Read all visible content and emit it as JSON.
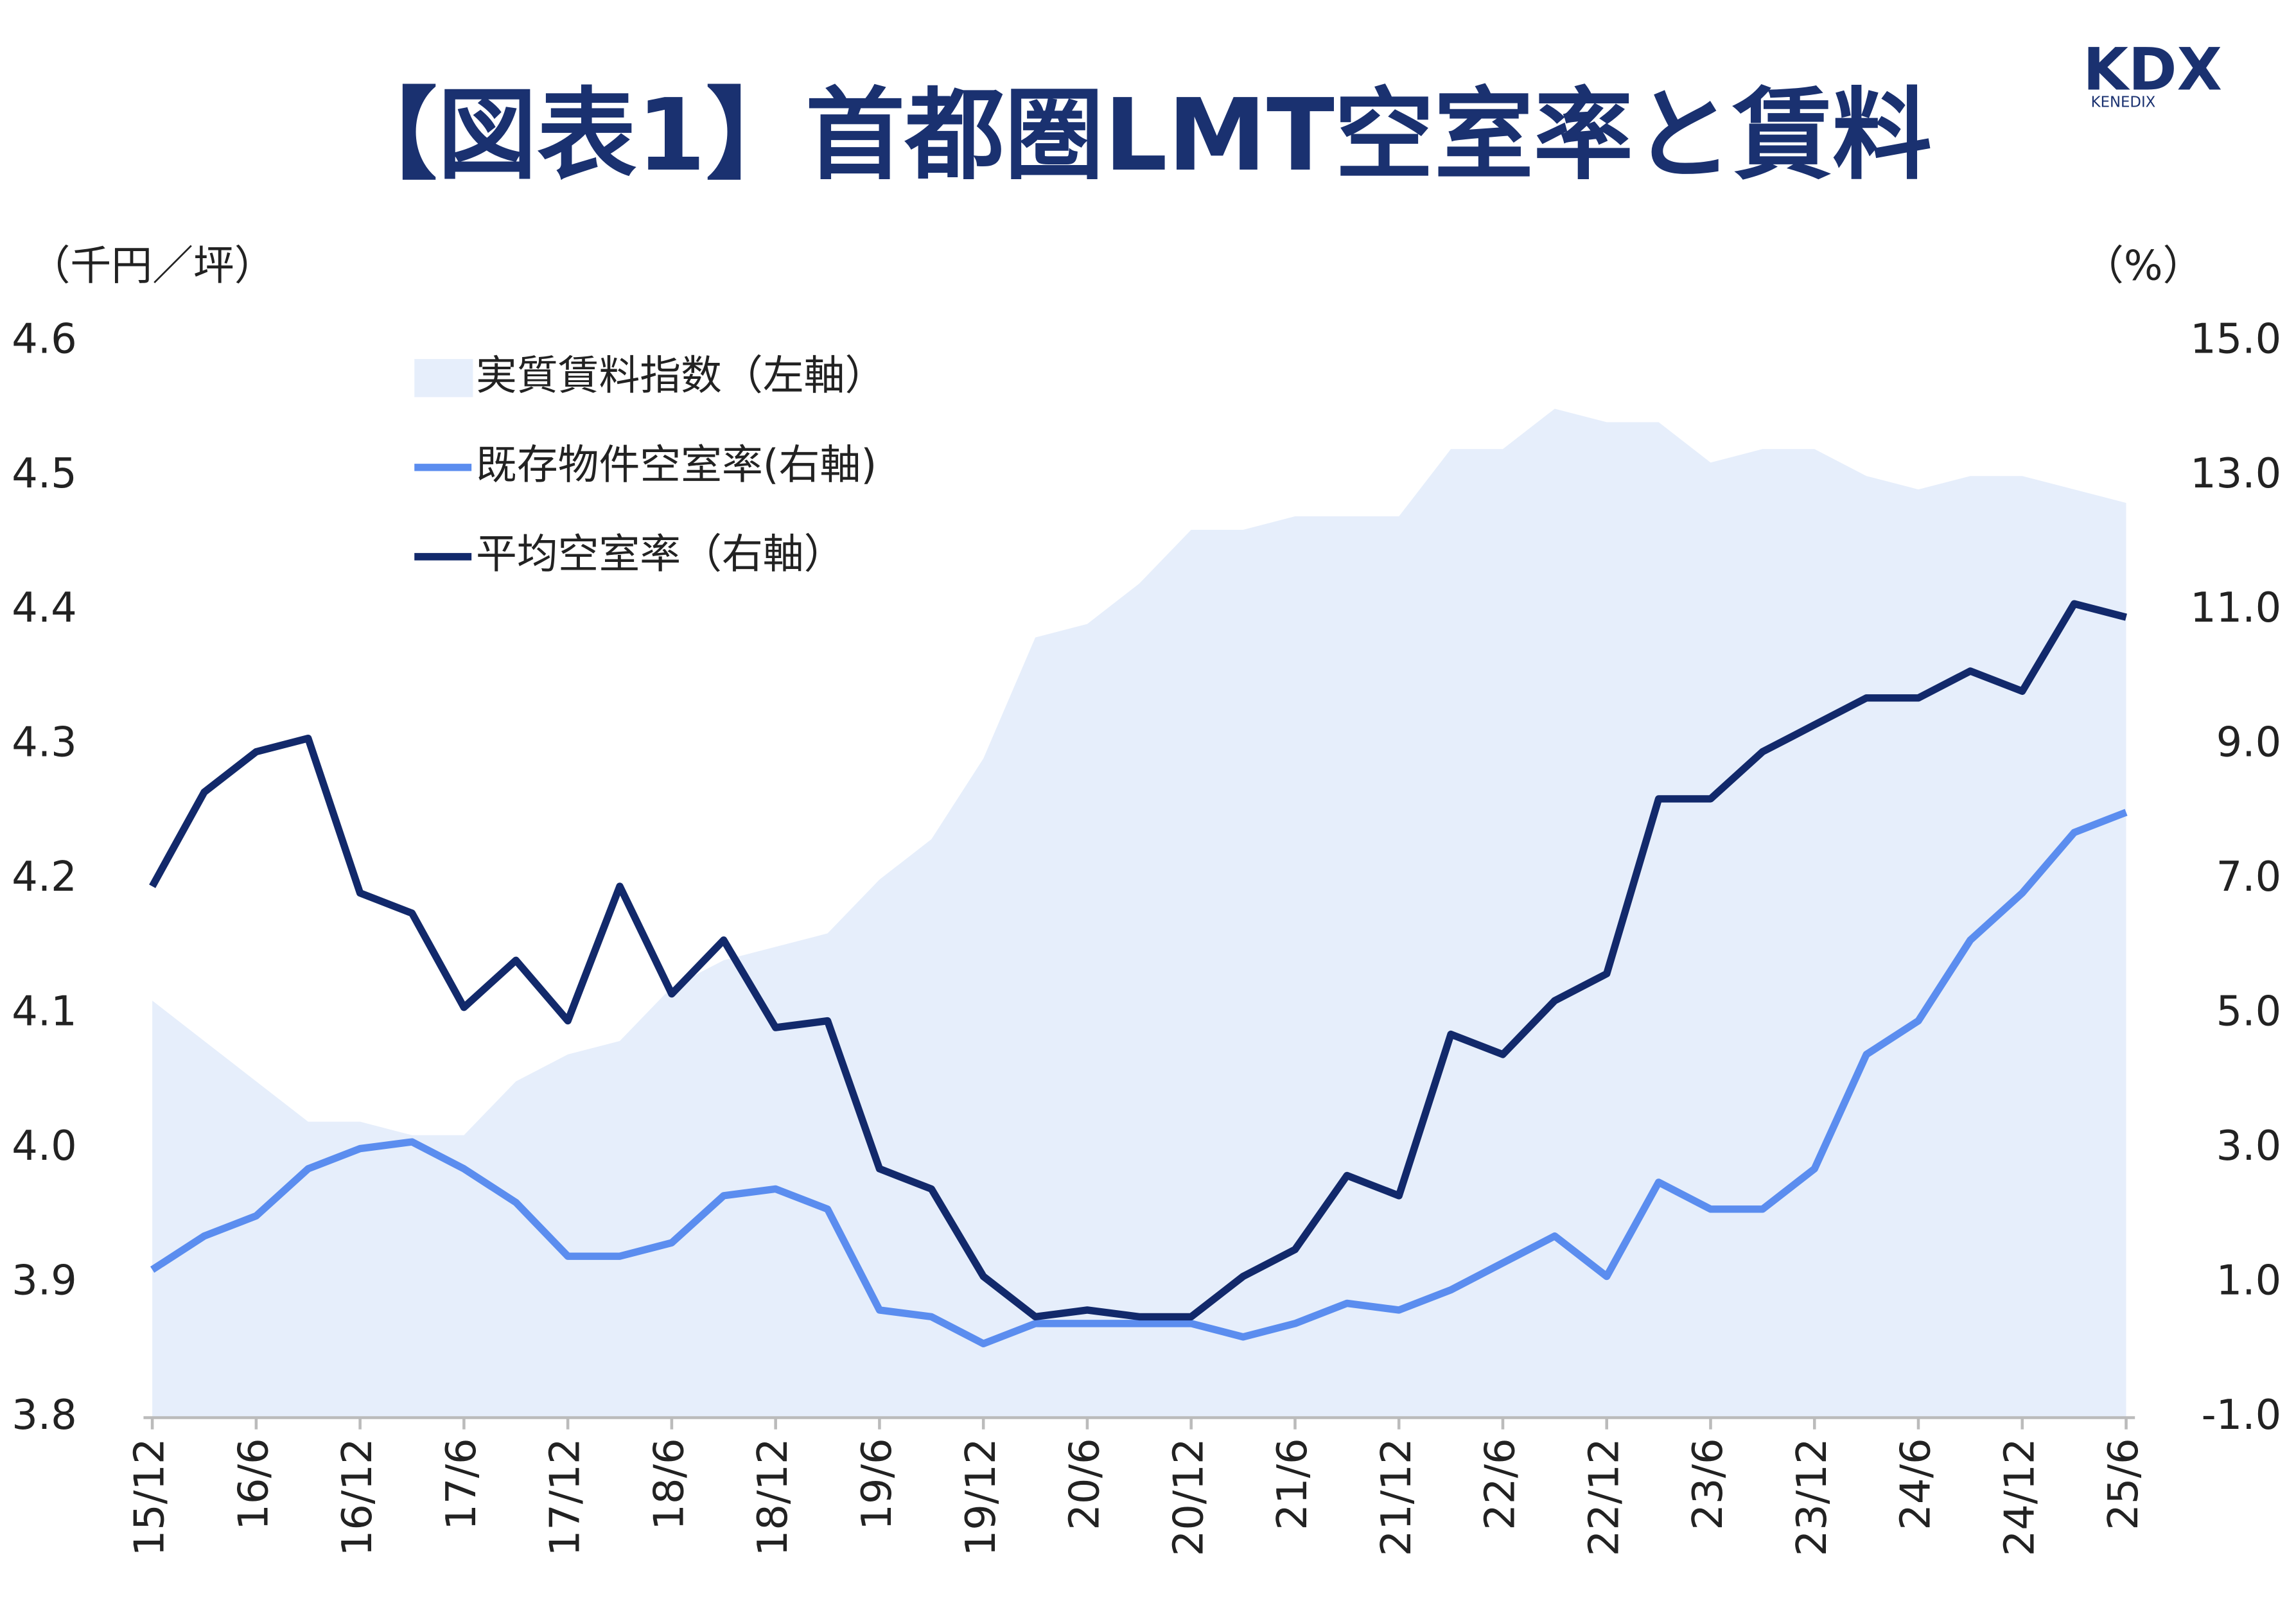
{
  "title": "【図表1】首都圏LMT空室率と賃料",
  "logo": {
    "name": "KDX",
    "subname": "KENEDIX"
  },
  "chart_data": {
    "type": "line",
    "y_unit": "（千円／坪）",
    "y2_unit": "（%）",
    "categories": [
      "15/12",
      null,
      "16/6",
      null,
      "16/12",
      null,
      "17/6",
      null,
      "17/12",
      null,
      "18/6",
      null,
      "18/12",
      null,
      "19/6",
      null,
      "19/12",
      null,
      "20/6",
      null,
      "20/12",
      null,
      "21/6",
      null,
      "21/12",
      null,
      "22/6",
      null,
      "22/12",
      null,
      "23/6",
      null,
      "23/12",
      null,
      "24/6",
      null,
      "24/12",
      null,
      "25/6"
    ],
    "series": [
      {
        "name": "実質賃料指数（左軸）",
        "mark": "area",
        "color": "#e6eefb",
        "axis": "y",
        "values": [
          4.11,
          4.08,
          4.05,
          4.02,
          4.02,
          4.01,
          4.01,
          4.05,
          4.07,
          4.08,
          4.12,
          4.14,
          4.15,
          4.16,
          4.2,
          4.23,
          4.29,
          4.38,
          4.39,
          4.42,
          4.46,
          4.46,
          4.47,
          4.47,
          4.47,
          4.52,
          4.52,
          4.55,
          4.54,
          4.54,
          4.51,
          4.52,
          4.52,
          4.5,
          4.49,
          4.5,
          4.5,
          4.49,
          4.48
        ]
      },
      {
        "name": "既存物件空室率(右軸)",
        "mark": "line",
        "color": "#5b8def",
        "axis": "y2",
        "values": [
          1.2,
          1.7,
          2.0,
          2.7,
          3.0,
          3.1,
          2.7,
          2.2,
          1.4,
          1.4,
          1.6,
          2.3,
          2.4,
          2.1,
          0.6,
          0.5,
          0.1,
          0.4,
          0.4,
          0.4,
          0.4,
          0.2,
          0.4,
          0.7,
          0.6,
          0.9,
          1.3,
          1.7,
          1.1,
          2.5,
          2.1,
          2.1,
          2.7,
          4.4,
          4.9,
          6.1,
          6.8,
          7.7,
          8.0
        ]
      },
      {
        "name": "平均空室率（右軸）",
        "mark": "line",
        "color": "#12296b",
        "axis": "y2",
        "values": [
          6.9,
          8.3,
          8.9,
          9.1,
          6.8,
          6.5,
          5.1,
          5.8,
          4.9,
          6.9,
          5.3,
          6.1,
          4.8,
          4.9,
          2.7,
          2.4,
          1.1,
          0.5,
          0.6,
          0.5,
          0.5,
          1.1,
          1.5,
          2.6,
          2.3,
          4.7,
          4.4,
          5.2,
          5.6,
          8.2,
          8.2,
          8.9,
          9.3,
          9.7,
          9.7,
          10.1,
          9.8,
          11.1,
          10.9
        ]
      }
    ],
    "ylim": [
      3.8,
      4.6
    ],
    "yticks": [
      3.8,
      3.9,
      {
        "value": 4,
        "label": "4.0"
      },
      4.1,
      4.2,
      4.3,
      4.4,
      4.5,
      4.6
    ],
    "y2lim": [
      -1,
      15
    ],
    "y2ticks": [
      {
        "value": -1,
        "label": "-1.0"
      },
      {
        "value": 1,
        "label": "1.0"
      },
      {
        "value": 3,
        "label": "3.0"
      },
      {
        "value": 5,
        "label": "5.0"
      },
      {
        "value": 7,
        "label": "7.0"
      },
      {
        "value": 9,
        "label": "9.0"
      },
      {
        "value": 11,
        "label": "11.0"
      },
      {
        "value": 13,
        "label": "13.0"
      },
      {
        "value": 15,
        "label": "15.0"
      }
    ],
    "grid": false,
    "legend": "top-left"
  }
}
